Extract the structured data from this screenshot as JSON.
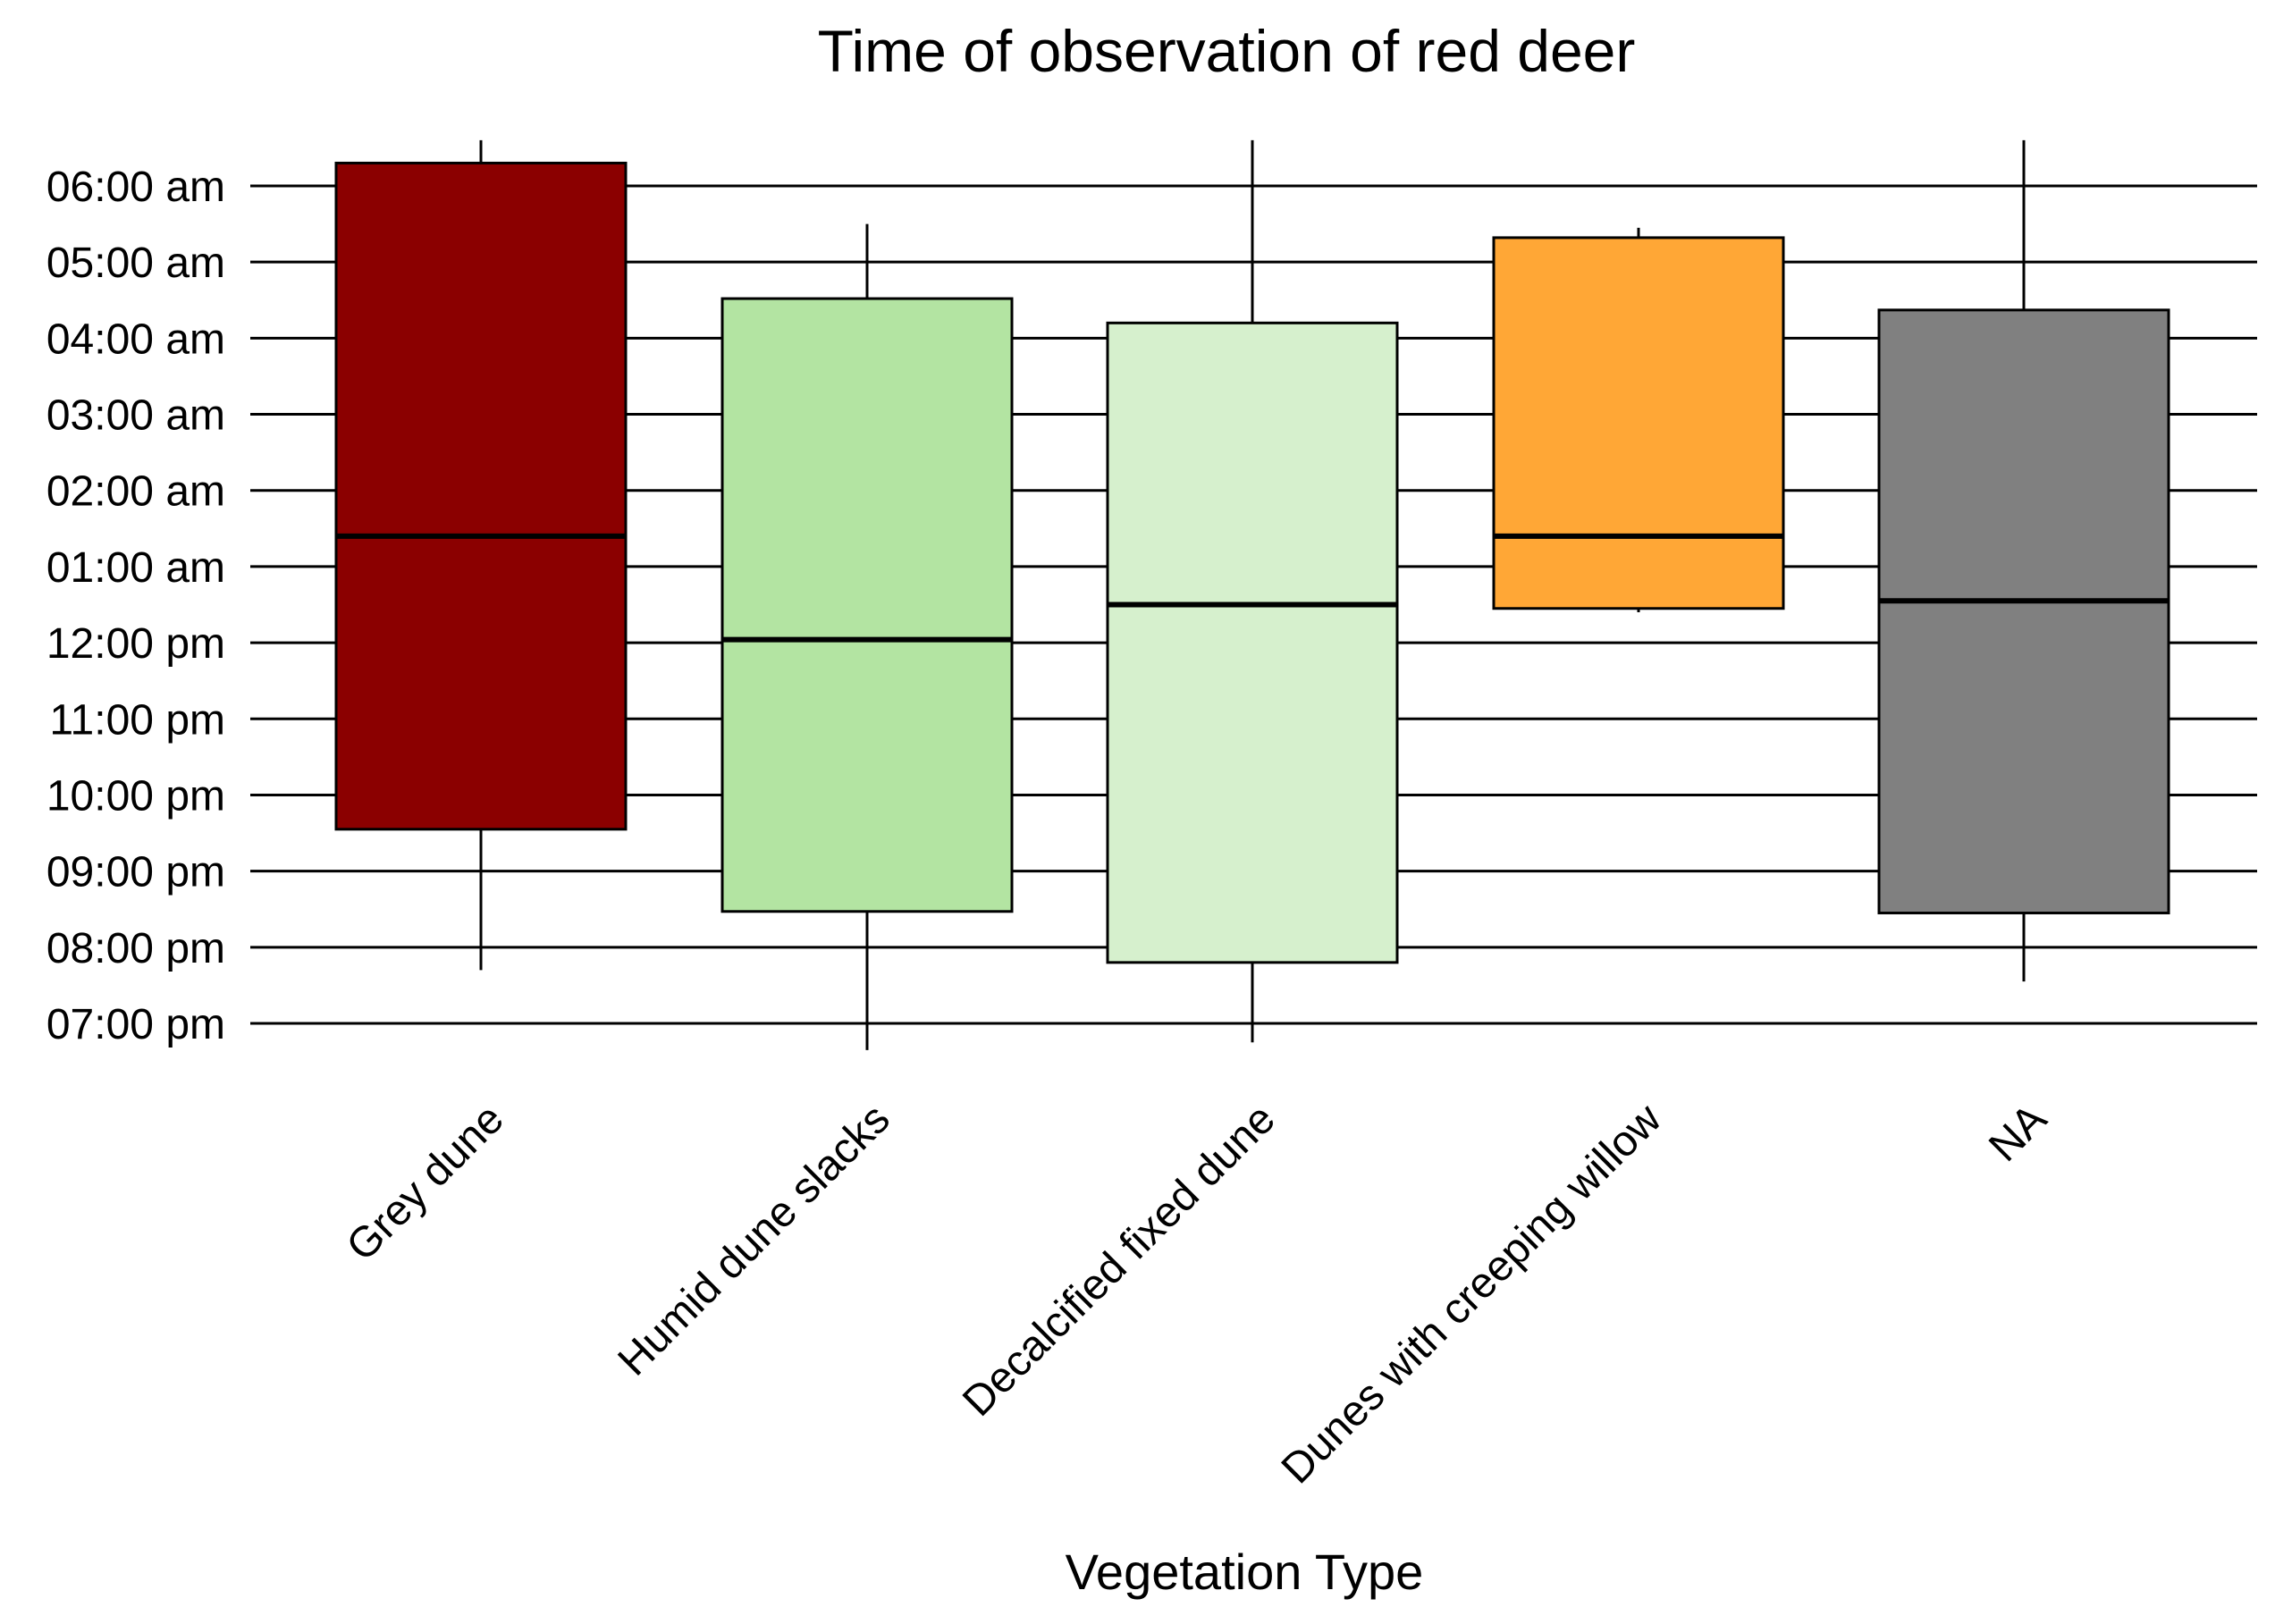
{
  "chart_data": {
    "type": "boxplot",
    "title": "Time of observation of red deer",
    "xlabel": "Vegetation Type",
    "ylabel": "",
    "y_ticks": [
      {
        "label": "07:00 pm",
        "value": 19
      },
      {
        "label": "08:00 pm",
        "value": 20
      },
      {
        "label": "09:00 pm",
        "value": 21
      },
      {
        "label": "10:00 pm",
        "value": 22
      },
      {
        "label": "11:00 pm",
        "value": 23
      },
      {
        "label": "12:00 pm",
        "value": 24
      },
      {
        "label": "01:00 am",
        "value": 25
      },
      {
        "label": "02:00 am",
        "value": 26
      },
      {
        "label": "03:00 am",
        "value": 27
      },
      {
        "label": "04:00 am",
        "value": 28
      },
      {
        "label": "05:00 am",
        "value": 29
      },
      {
        "label": "06:00 am",
        "value": 30
      }
    ],
    "ylim": [
      18.4,
      30.6
    ],
    "grid": true,
    "categories": [
      "Grey dune",
      "Humid dune slacks",
      "Decalcified fixed dune",
      "Dunes with creeping willow",
      "NA"
    ],
    "boxes": [
      {
        "category": "Grey dune",
        "whisker_low": 19.7,
        "q1": 21.55,
        "median": 25.4,
        "q3": 30.3,
        "whisker_high": 30.6,
        "color": "#8b0000"
      },
      {
        "category": "Humid dune slacks",
        "whisker_low": 18.65,
        "q1": 20.47,
        "median": 24.04,
        "q3": 28.52,
        "whisker_high": 29.5,
        "color": "#b3e4a2"
      },
      {
        "category": "Decalcified fixed dune",
        "whisker_low": 18.75,
        "q1": 19.8,
        "median": 24.5,
        "q3": 28.2,
        "whisker_high": 30.6,
        "color": "#d6f0cd"
      },
      {
        "category": "Dunes with creeping willow",
        "whisker_low": 24.4,
        "q1": 24.45,
        "median": 25.4,
        "q3": 29.32,
        "whisker_high": 29.45,
        "color": "#ffa736"
      },
      {
        "category": "NA",
        "whisker_low": 19.55,
        "q1": 20.45,
        "median": 24.55,
        "q3": 28.37,
        "whisker_high": 30.6,
        "color": "#808080"
      }
    ]
  }
}
